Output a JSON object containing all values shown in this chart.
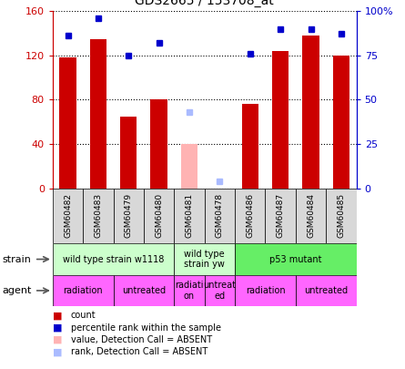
{
  "title": "GDS2665 / 153708_at",
  "samples": [
    "GSM60482",
    "GSM60483",
    "GSM60479",
    "GSM60480",
    "GSM60481",
    "GSM60478",
    "GSM60486",
    "GSM60487",
    "GSM60484",
    "GSM60485"
  ],
  "counts": [
    118,
    135,
    65,
    80,
    null,
    null,
    76,
    124,
    138,
    120
  ],
  "ranks": [
    86,
    96,
    75,
    82,
    null,
    null,
    76,
    90,
    90,
    87
  ],
  "absent_value": [
    null,
    null,
    null,
    null,
    40,
    null,
    null,
    null,
    null,
    null
  ],
  "absent_rank": [
    null,
    null,
    null,
    null,
    43,
    4,
    null,
    null,
    null,
    null
  ],
  "count_color": "#cc0000",
  "rank_color": "#0000cc",
  "absent_value_color": "#ffb3b3",
  "absent_rank_color": "#aabbff",
  "ylim_left": [
    0,
    160
  ],
  "ylim_right": [
    0,
    100
  ],
  "yticks_left": [
    0,
    40,
    80,
    120,
    160
  ],
  "yticks_right": [
    0,
    25,
    50,
    75,
    100
  ],
  "ytick_labels_right": [
    "0",
    "25",
    "50",
    "75",
    "100%"
  ],
  "ytick_labels_left": [
    "0",
    "40",
    "80",
    "120",
    "160"
  ],
  "strain_groups": [
    {
      "label": "wild type strain w1118",
      "start": 0,
      "end": 4,
      "color": "#ccffcc"
    },
    {
      "label": "wild type\nstrain yw",
      "start": 4,
      "end": 6,
      "color": "#ccffcc"
    },
    {
      "label": "p53 mutant",
      "start": 6,
      "end": 10,
      "color": "#66ee66"
    }
  ],
  "agent_groups": [
    {
      "label": "radiation",
      "start": 0,
      "end": 2,
      "color": "#ff66ff"
    },
    {
      "label": "untreated",
      "start": 2,
      "end": 4,
      "color": "#ff66ff"
    },
    {
      "label": "radiati\non",
      "start": 4,
      "end": 5,
      "color": "#ff66ff"
    },
    {
      "label": "untreat\ned",
      "start": 5,
      "end": 6,
      "color": "#ff66ff"
    },
    {
      "label": "radiation",
      "start": 6,
      "end": 8,
      "color": "#ff66ff"
    },
    {
      "label": "untreated",
      "start": 8,
      "end": 10,
      "color": "#ff66ff"
    }
  ],
  "left_axis_color": "#cc0000",
  "right_axis_color": "#0000cc",
  "sample_bg_color": "#d8d8d8",
  "plot_bg_color": "#ffffff"
}
